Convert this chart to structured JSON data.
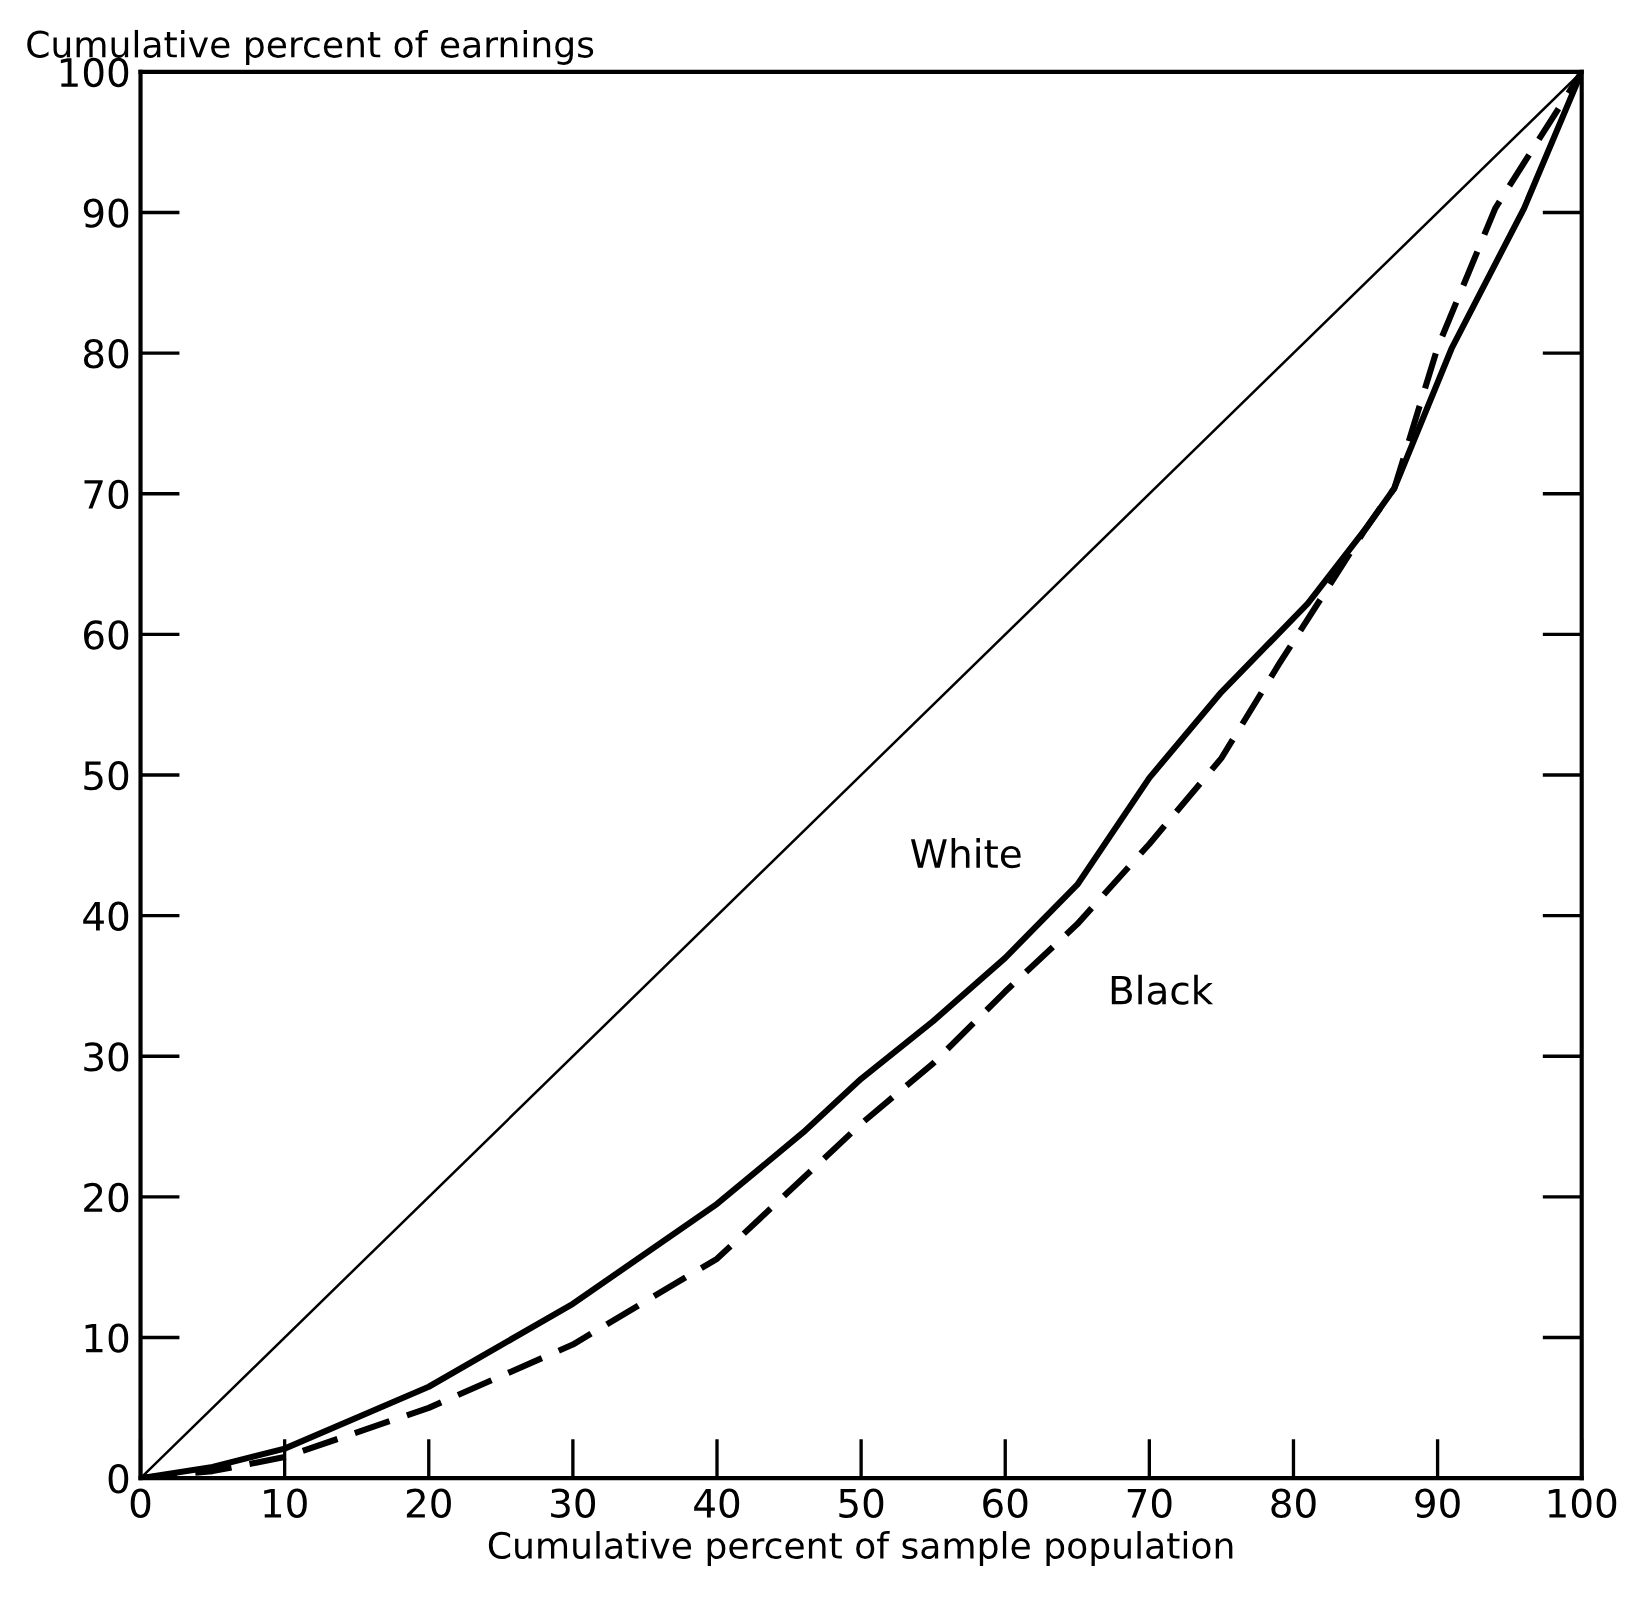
{
  "chart_data": {
    "type": "line",
    "xlabel": "Cumulative percent of sample population",
    "ylabel": "Cumulative percent of earnings",
    "xlim": [
      0,
      100
    ],
    "ylim": [
      0,
      100
    ],
    "xticks": [
      0,
      10,
      20,
      30,
      40,
      50,
      60,
      70,
      80,
      90,
      100
    ],
    "yticks": [
      0,
      10,
      20,
      30,
      40,
      50,
      60,
      70,
      80,
      90,
      100
    ],
    "grid": false,
    "legend": false,
    "marker": "none",
    "series": [
      {
        "color": "#000000",
        "line_style": "solid",
        "x": [
          0,
          100
        ],
        "values": [
          0,
          100
        ]
      },
      {
        "name": "White",
        "color": "#000000",
        "line_style": "solid",
        "x": [
          0,
          5,
          10,
          20,
          30,
          40,
          46,
          50,
          55,
          60,
          65,
          70,
          75,
          81,
          85,
          87,
          91,
          96,
          100
        ],
        "values": [
          0,
          0.8,
          2.1,
          6.5,
          12.4,
          19.5,
          24.6,
          28.4,
          32.5,
          37,
          42.2,
          49.8,
          55.9,
          62.2,
          67.5,
          70.4,
          80.4,
          90.3,
          100
        ]
      },
      {
        "name": "Black",
        "color": "#000000",
        "line_style": "dashed",
        "x": [
          0,
          5,
          10,
          20,
          30,
          40,
          50,
          55,
          60,
          65,
          70,
          75,
          79,
          85,
          87,
          90,
          94,
          100
        ],
        "values": [
          0,
          0.5,
          1.5,
          5.0,
          9.5,
          15.6,
          25.2,
          29.5,
          34.6,
          39.4,
          45.1,
          51.2,
          57.9,
          67.5,
          70.4,
          80.4,
          90.3,
          100
        ]
      }
    ]
  }
}
